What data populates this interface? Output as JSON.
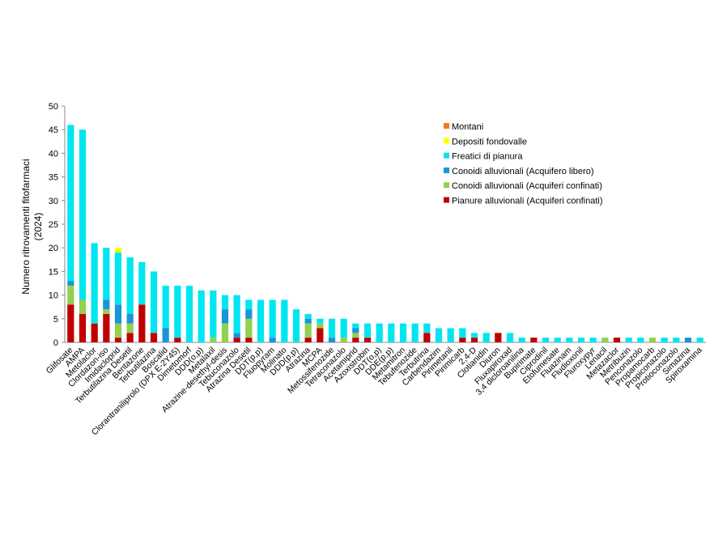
{
  "chart_data": {
    "type": "stacked_bar",
    "y_label": "Numero ritrovamenti fitofarmaci (2024)",
    "categories": [
      "Glifosate",
      "AMPA",
      "Metolaclor",
      "Clordazon-iso",
      "Imidacloprid",
      "Terbutilazina Desetil",
      "Bentazone",
      "Terbutilazina",
      "Boscalid",
      "Clorantraniliprolo (DPX E-2Y45)",
      "Dimetomorf",
      "DDD(o,p)",
      "Metalaxil",
      "Atrazine-desethyl-desis",
      "Tebuconazolo",
      "Atrazina Desetil",
      "DDT(p,p)",
      "Fluopyram",
      "Molinato",
      "DDD(p,p)",
      "Atrazina",
      "MCPA",
      "Metossifenozide",
      "Tetraconazolo",
      "Acetamiprid",
      "Azoxistrobin",
      "DDT(o,p)",
      "DDE(p,p)",
      "Metamitron",
      "Tebufenozide",
      "Terbutrina",
      "Carbendazim",
      "Pirimetanil",
      "Pirimicarb",
      "2,4-D",
      "Clotianidin",
      "Diuron",
      "Fluxapiroxad",
      "3,4 dicloroanilina",
      "Bupirimate",
      "Ciprodinil",
      "Etofumesate",
      "Fluazinam",
      "Fludioxonil",
      "Fluroxypyr",
      "Lenacil",
      "Metazaclor",
      "Metribuzin",
      "Penconazolo",
      "Propamocarb",
      "Propiconazolo",
      "Protioconazolo",
      "Simazina",
      "Spiroxamina"
    ],
    "series": [
      {
        "name": "Pianure alluvionali (Acquiferi confinati)",
        "color": "#c00000",
        "values": [
          8,
          6,
          4,
          6,
          1,
          2,
          8,
          2,
          0,
          1,
          0,
          0,
          0,
          0,
          1,
          1,
          0,
          0,
          0,
          0,
          1,
          3,
          0,
          0,
          1,
          1,
          0,
          0,
          0,
          0,
          2,
          0,
          0,
          1,
          1,
          0,
          2,
          0,
          0,
          1,
          0,
          0,
          0,
          0,
          0,
          0,
          1,
          0,
          0,
          0,
          0,
          0,
          0,
          0
        ]
      },
      {
        "name": "Conoidi alluvionali (Acquiferi confinati)",
        "color": "#92d050",
        "values": [
          4,
          3,
          0,
          1,
          3,
          2,
          0,
          0,
          0,
          0,
          0,
          0,
          1,
          4,
          0,
          4,
          0,
          0,
          0,
          0,
          3,
          1,
          0,
          1,
          1,
          0,
          0,
          0,
          0,
          0,
          0,
          0,
          0,
          0,
          0,
          0,
          0,
          0,
          0,
          0,
          0,
          0,
          0,
          0,
          0,
          1,
          0,
          0,
          0,
          1,
          0,
          0,
          0,
          0
        ]
      },
      {
        "name": "Conoidi alluvionali (Acquifero libero)",
        "color": "#1c94d8",
        "values": [
          1,
          0,
          0,
          2,
          4,
          2,
          0,
          0,
          3,
          0,
          0,
          0,
          0,
          3,
          1,
          2,
          0,
          1,
          0,
          0,
          1,
          0,
          1,
          0,
          1,
          0,
          0,
          0,
          0,
          0,
          0,
          0,
          0,
          0,
          0,
          0,
          0,
          0,
          0,
          0,
          0,
          0,
          0,
          0,
          0,
          0,
          0,
          0,
          0,
          0,
          0,
          0,
          1,
          0
        ]
      },
      {
        "name": "Freatici di pianura",
        "color": "#00e6f0",
        "values": [
          33,
          36,
          17,
          11,
          11,
          12,
          9,
          13,
          9,
          11,
          12,
          11,
          10,
          3,
          8,
          2,
          9,
          8,
          9,
          7,
          1,
          1,
          4,
          4,
          1,
          3,
          4,
          4,
          4,
          4,
          2,
          3,
          3,
          2,
          1,
          2,
          0,
          2,
          1,
          0,
          1,
          1,
          1,
          1,
          1,
          0,
          0,
          1,
          1,
          0,
          1,
          1,
          0,
          1
        ]
      },
      {
        "name": "Depositi fondovalle",
        "color": "#ffff00",
        "values": [
          0,
          0,
          0,
          0,
          1,
          0,
          0,
          0,
          0,
          0,
          0,
          0,
          0,
          0,
          0,
          0,
          0,
          0,
          0,
          0,
          0,
          0,
          0,
          0,
          0,
          0,
          0,
          0,
          0,
          0,
          0,
          0,
          0,
          0,
          0,
          0,
          0,
          0,
          0,
          0,
          0,
          0,
          0,
          0,
          0,
          0,
          0,
          0,
          0,
          0,
          0,
          0,
          0,
          0
        ]
      },
      {
        "name": "Montani",
        "color": "#f07820",
        "values": [
          0,
          0,
          0,
          0,
          0,
          0,
          0,
          0,
          0,
          0,
          0,
          0,
          0,
          0,
          0,
          0,
          0,
          0,
          0,
          0,
          0,
          0,
          0,
          0,
          0,
          0,
          0,
          0,
          0,
          0,
          0,
          0,
          0,
          0,
          0,
          0,
          0,
          0,
          0,
          0,
          0,
          0,
          0,
          0,
          0,
          0,
          0,
          0,
          0,
          0,
          0,
          0,
          0,
          0
        ]
      }
    ],
    "ylim": [
      0,
      50
    ],
    "yticks": [
      0,
      5,
      10,
      15,
      20,
      25,
      30,
      35,
      40,
      45,
      50
    ],
    "grid": false,
    "legend": "upper right"
  }
}
